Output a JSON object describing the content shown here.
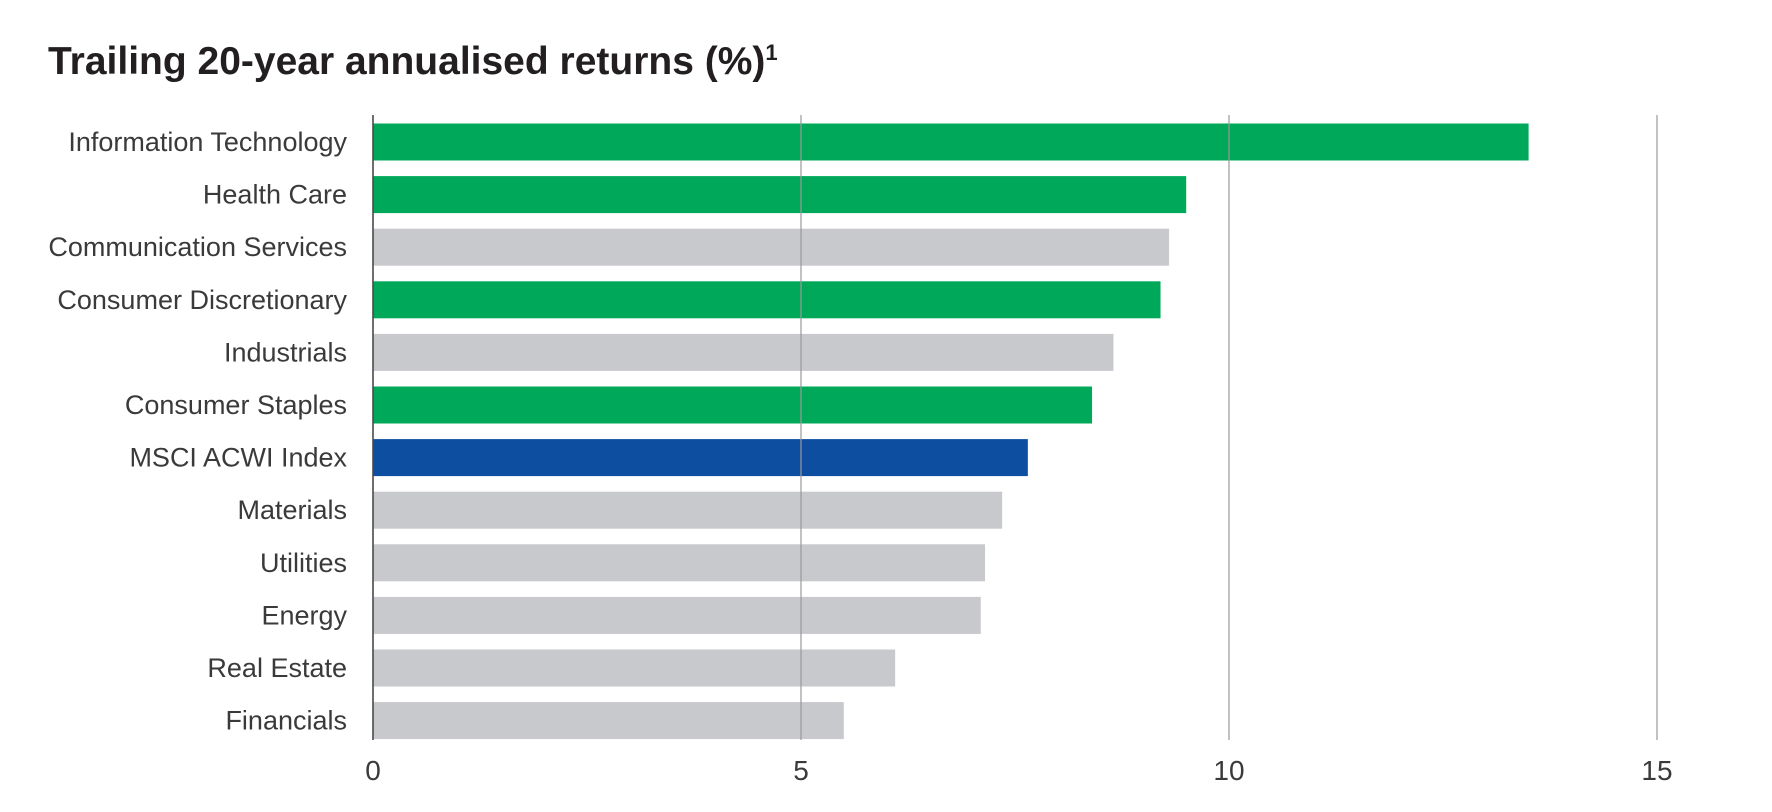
{
  "chart_data": {
    "type": "bar",
    "orientation": "horizontal",
    "title": "Trailing 20-year annualised returns (%)",
    "title_footnote": "1",
    "categories": [
      "Information Technology",
      "Health Care",
      "Communication Services",
      "Consumer Discretionary",
      "Industrials",
      "Consumer Staples",
      "MSCI ACWI Index",
      "Materials",
      "Utilities",
      "Energy",
      "Real Estate",
      "Financials"
    ],
    "values": [
      13.5,
      9.5,
      9.3,
      9.2,
      8.65,
      8.4,
      7.65,
      7.35,
      7.15,
      7.1,
      6.1,
      5.5
    ],
    "bar_groups": [
      "highlight",
      "highlight",
      "other",
      "highlight",
      "other",
      "highlight",
      "index",
      "other",
      "other",
      "other",
      "other",
      "other"
    ],
    "colors": {
      "highlight": "#00a85a",
      "index": "#0d4ea1",
      "other": "#c8c9cc",
      "gridline": "#9a9a9a",
      "axis": "#4a4a4a"
    },
    "xlim": [
      0,
      15
    ],
    "xticks": [
      "0",
      "5",
      "10",
      "15"
    ],
    "xtick_values": [
      0,
      5,
      10,
      15
    ],
    "grid": true,
    "xlabel": "",
    "ylabel": ""
  }
}
